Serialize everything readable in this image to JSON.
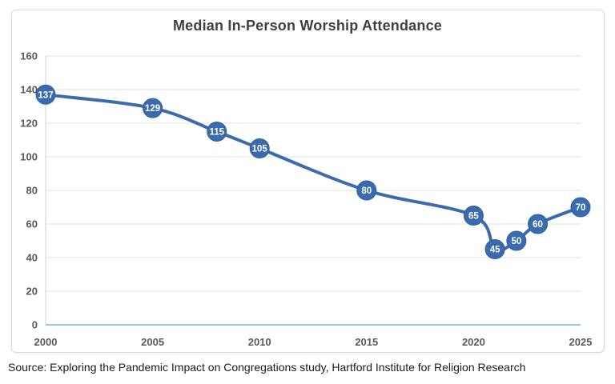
{
  "source_note": "Source: Exploring the Pandemic Impact on Congregations study, Hartford Institute for Religion Research",
  "chart_data": {
    "type": "line",
    "title": "Median In-Person Worship Attendance",
    "x": [
      2000,
      2005,
      2008,
      2010,
      2015,
      2020,
      2021,
      2022,
      2023,
      2025
    ],
    "values": [
      137,
      129,
      115,
      105,
      80,
      65,
      45,
      50,
      60,
      70
    ],
    "point_labels": [
      "137",
      "129",
      "115",
      "105",
      "80",
      "65",
      "45",
      "50",
      "60",
      "70"
    ],
    "xlabel": "",
    "ylabel": "",
    "xlim": [
      2000,
      2025
    ],
    "ylim": [
      0,
      160
    ],
    "yticks": [
      0,
      20,
      40,
      60,
      80,
      100,
      120,
      140,
      160
    ],
    "xticks": [
      2000,
      2005,
      2010,
      2015,
      2020,
      2025
    ],
    "grid": "horizontal",
    "legend": "none",
    "smoothed_line": true,
    "colors": {
      "line": "#3a6bae",
      "marker_fill": "#3a6bae",
      "marker_stroke": "#2e5f9e",
      "marker_text": "#ffffff",
      "gridline": "#e2e2e2",
      "axis_line": "#cfcfcf",
      "baseline": "#9dc3e6",
      "title": "#404040",
      "tick_label": "#595959"
    }
  }
}
